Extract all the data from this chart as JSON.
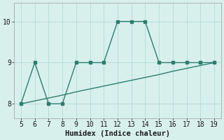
{
  "x": [
    5,
    6,
    7,
    8,
    9,
    10,
    11,
    12,
    13,
    14,
    15,
    16,
    17,
    18,
    19
  ],
  "y_line": [
    8,
    9,
    8,
    8,
    9,
    9,
    9,
    10,
    10,
    10,
    9,
    9,
    9,
    9,
    9
  ],
  "trend_x": [
    5,
    6,
    7,
    8,
    9,
    10,
    11,
    12,
    13,
    14,
    15,
    16,
    17,
    18,
    19
  ],
  "trend_y": [
    8.0,
    8.07,
    8.14,
    8.21,
    8.29,
    8.36,
    8.43,
    8.5,
    8.57,
    8.64,
    8.71,
    8.79,
    8.86,
    8.93,
    9.0
  ],
  "line_color": "#2d7d6e",
  "bg_color": "#d8f0ec",
  "grid_color": "#b8ddd8",
  "xlabel": "Humidex (Indice chaleur)",
  "xlim": [
    4.5,
    19.5
  ],
  "ylim": [
    7.65,
    10.45
  ],
  "yticks": [
    8,
    9,
    10
  ],
  "xticks": [
    5,
    6,
    7,
    8,
    9,
    10,
    11,
    12,
    13,
    14,
    15,
    16,
    17,
    18,
    19
  ],
  "xlabel_fontsize": 7.5,
  "tick_fontsize": 7
}
